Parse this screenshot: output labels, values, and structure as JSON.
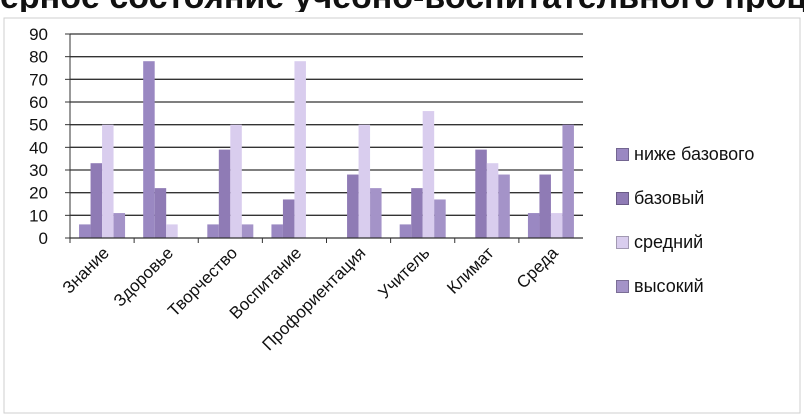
{
  "page": {
    "cut_title": "ерное состояние учебно-воспитательного процесса"
  },
  "chart_data": {
    "type": "bar",
    "title": "",
    "xlabel": "",
    "ylabel": "",
    "ylim": [
      0,
      90
    ],
    "yticks": [
      0,
      10,
      20,
      30,
      40,
      50,
      60,
      70,
      80,
      90
    ],
    "grid": true,
    "legend_position": "right",
    "categories": [
      "Знание",
      "Здоровье",
      "Творчество",
      "Воспитание",
      "Профориентация",
      "Учитель",
      "Климат",
      "Среда"
    ],
    "series": [
      {
        "name": "ниже базового",
        "color": "#9a88c2",
        "values": [
          6,
          78,
          6,
          6,
          0,
          6,
          0,
          11
        ]
      },
      {
        "name": "базовый",
        "color": "#8f7bb5",
        "values": [
          33,
          22,
          39,
          17,
          28,
          22,
          39,
          28
        ]
      },
      {
        "name": "средний",
        "color": "#d9cdee",
        "values": [
          50,
          6,
          50,
          78,
          50,
          56,
          33,
          11
        ]
      },
      {
        "name": "высокий",
        "color": "#a493c8",
        "values": [
          11,
          0,
          6,
          0,
          22,
          17,
          28,
          50
        ]
      }
    ]
  }
}
